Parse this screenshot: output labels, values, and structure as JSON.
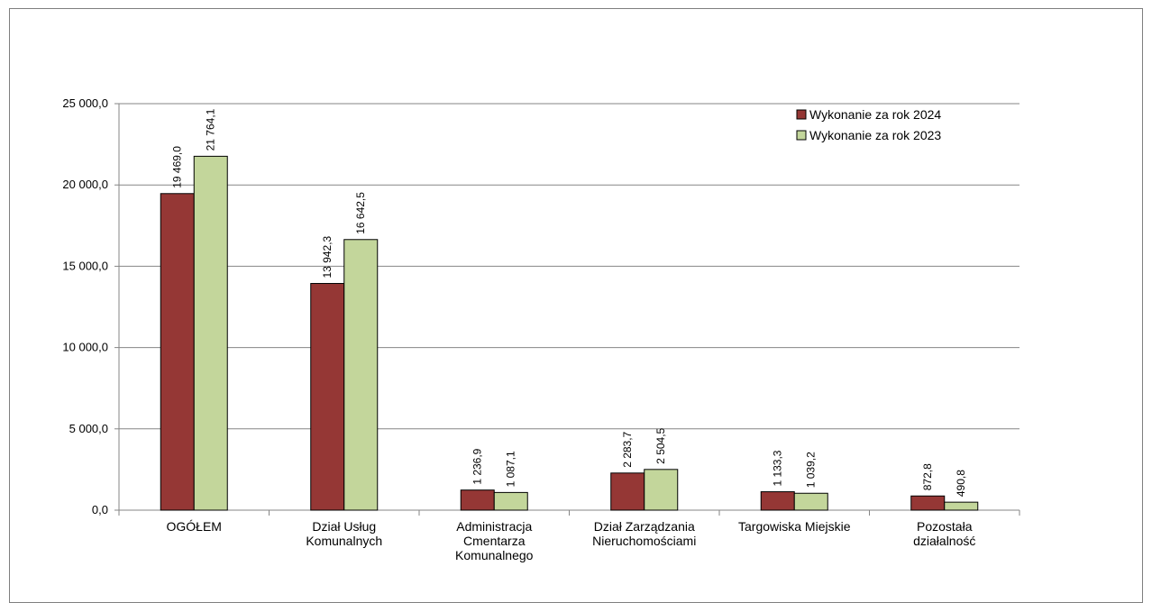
{
  "chart_data": {
    "type": "bar",
    "categories": [
      [
        "OGÓŁEM"
      ],
      [
        "Dział Usług",
        "Komunalnych"
      ],
      [
        "Administracja",
        "Cmentarza",
        "Komunalnego"
      ],
      [
        "Dział Zarządzania",
        "Nieruchomościami"
      ],
      [
        "Targowiska Miejskie"
      ],
      [
        "Pozostała",
        "działalność"
      ]
    ],
    "series": [
      {
        "name": "Wykonanie za rok 2024",
        "color": "#953735",
        "values": [
          19469.0,
          13942.3,
          1236.9,
          2283.7,
          1133.3,
          872.8
        ],
        "labels": [
          "19 469,0",
          "13 942,3",
          "1 236,9",
          "2 283,7",
          "1 133,3",
          "872,8"
        ]
      },
      {
        "name": "Wykonanie za rok 2023",
        "color": "#c3d69b",
        "values": [
          21764.1,
          16642.5,
          1087.1,
          2504.5,
          1039.2,
          490.8
        ],
        "labels": [
          "21 764,1",
          "16 642,5",
          "1 087,1",
          "2 504,5",
          "1 039,2",
          "490,8"
        ]
      }
    ],
    "ylim": [
      0,
      25000
    ],
    "yticks": [
      0,
      5000,
      10000,
      15000,
      20000,
      25000
    ],
    "ytick_labels": [
      "0,0",
      "5 000,0",
      "10 000,0",
      "15 000,0",
      "20 000,0",
      "25 000,0"
    ],
    "grid": true,
    "legend_position": "top-right"
  }
}
